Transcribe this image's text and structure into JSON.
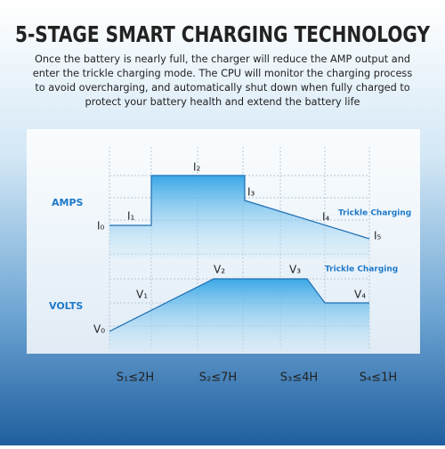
{
  "header": {
    "title": "5-STAGE SMART CHARGING TECHNOLOGY",
    "description": [
      "Once the battery is nearly full, the charger will reduce the AMP output and",
      "enter the trickle charging mode. The CPU will monitor the charging process",
      "to avoid overcharging, and automatically shut down when fully charged to",
      "protect your battery health and extend the battery life"
    ]
  },
  "diagram": {
    "amps": {
      "label": "AMPS",
      "stages": [
        "I₀",
        "I₁",
        "I₂",
        "I₃",
        "I₄",
        "I₅"
      ],
      "note": "Trickle Charging"
    },
    "volts": {
      "label": "VOLTS",
      "stages": [
        "V₀",
        "V₁",
        "V₂",
        "V₃",
        "V₄"
      ],
      "note": "Trickle Charging"
    },
    "durations": [
      "S₁≤2H",
      "S₂≤7H",
      "S₃≤4H",
      "S₄≤1H"
    ]
  }
}
